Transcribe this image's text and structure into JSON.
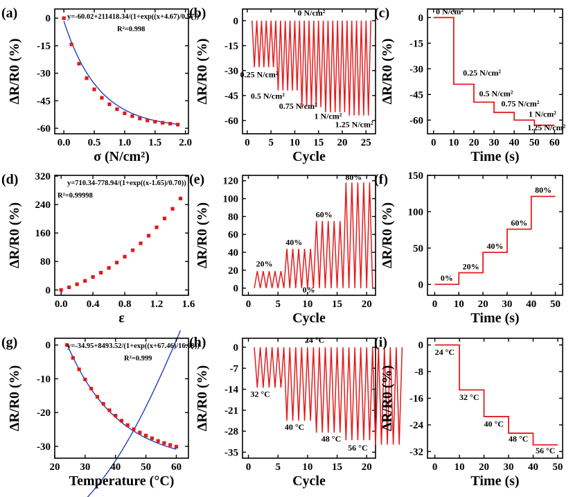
{
  "colors": {
    "data": "#e31a1c",
    "fit": "#1f3fbf",
    "axis": "#000000"
  },
  "chart_data": [
    {
      "panel": "a",
      "type": "scatter",
      "panel_label": "(a)",
      "xlabel": "σ (N/cm²)",
      "ylabel": "ΔR/R0 (%)",
      "xlim": [
        -0.15,
        2.05
      ],
      "ylim": [
        -63,
        5
      ],
      "xticks": [
        0.0,
        0.5,
        1.0,
        1.5,
        2.0
      ],
      "xtick_labels": [
        "0.0",
        "0.5",
        "1.0",
        "1.5",
        "2.0"
      ],
      "yticks": [
        0,
        -15,
        -30,
        -45,
        -60
      ],
      "ytick_labels": [
        "0",
        "-15",
        "-30",
        "-45",
        "-60"
      ],
      "equation": "y=-60.02+211418.34/(1+exp((x+4.67)/0.57))",
      "r2": "R²=0.998",
      "fit": {
        "kind": "boltzmann",
        "A1": 211418.34,
        "A2": -60.02,
        "x0": -4.67,
        "dx": 0.57
      },
      "points_x": [
        0.0,
        0.125,
        0.25,
        0.375,
        0.5,
        0.625,
        0.75,
        0.875,
        1.0,
        1.125,
        1.25,
        1.375,
        1.5,
        1.625,
        1.75,
        1.875
      ],
      "points_y": [
        0,
        -14.3,
        -24.8,
        -32.7,
        -38.8,
        -43.4,
        -46.9,
        -49.6,
        -51.8,
        -53.4,
        -54.7,
        -55.7,
        -56.4,
        -57.0,
        -57.5,
        -58.0
      ]
    },
    {
      "panel": "b",
      "type": "line",
      "panel_label": "(b)",
      "xlabel": "Cycle",
      "ylabel": "ΔR/R0 (%)",
      "xlim": [
        -1,
        27
      ],
      "ylim": [
        -68,
        7
      ],
      "xticks": [
        0,
        5,
        10,
        15,
        20,
        25
      ],
      "xtick_labels": [
        "0",
        "5",
        "10",
        "15",
        "20",
        "25"
      ],
      "yticks": [
        0,
        -15,
        -30,
        -45,
        -60
      ],
      "ytick_labels": [
        "0",
        "-15",
        "-30",
        "-45",
        "-60"
      ],
      "cycles_per_level": 5,
      "levels": [
        -28,
        -42,
        -52,
        -55,
        -57
      ],
      "annotations": [
        {
          "text": "0 N/cm²",
          "x": 13.5,
          "y": 3
        },
        {
          "text": "0.25 N/cm²",
          "x": 2.5,
          "y": -34
        },
        {
          "text": "0.5 N/cm²",
          "x": 4.3,
          "y": -47
        },
        {
          "text": "0.75 N/cm²",
          "x": 10.7,
          "y": -53
        },
        {
          "text": "1 N/cm²",
          "x": 17.0,
          "y": -59
        },
        {
          "text": "1.25 N/cm²",
          "x": 22.5,
          "y": -64
        }
      ]
    },
    {
      "panel": "c",
      "type": "line",
      "panel_label": "(c)",
      "xlabel": "Time (s)",
      "ylabel": "ΔR/R0 (%)",
      "xlim": [
        -3,
        64
      ],
      "ylim": [
        -68,
        5
      ],
      "xticks": [
        0,
        10,
        20,
        30,
        40,
        50,
        60
      ],
      "xtick_labels": [
        "0",
        "10",
        "20",
        "30",
        "40",
        "50",
        "60"
      ],
      "yticks": [
        0,
        -15,
        -30,
        -45,
        -60
      ],
      "ytick_labels": [
        "0",
        "-15",
        "-30",
        "-45",
        "-60"
      ],
      "x": [
        0,
        10,
        10,
        20,
        20,
        30,
        30,
        40,
        40,
        50,
        50,
        60
      ],
      "y": [
        0,
        0,
        -39,
        -39,
        -49.5,
        -49.5,
        -55.5,
        -55.5,
        -60,
        -60,
        -63,
        -63
      ],
      "annotations": [
        {
          "text": "0 N/cm²",
          "x": 8,
          "y": 2
        },
        {
          "text": "0.25 N/cm²",
          "x": 24,
          "y": -34
        },
        {
          "text": "0.5 N/cm²",
          "x": 31,
          "y": -46
        },
        {
          "text": "0.75 N/cm²",
          "x": 43,
          "y": -52
        },
        {
          "text": "1 N/cm²",
          "x": 54,
          "y": -58
        },
        {
          "text": "1.25 N/cm²",
          "x": 56,
          "y": -66
        }
      ]
    },
    {
      "panel": "d",
      "type": "scatter",
      "panel_label": "(d)",
      "xlabel": "ε",
      "ylabel": "ΔR/R0 (%)",
      "xlim": [
        -0.08,
        1.6
      ],
      "ylim": [
        -15,
        322
      ],
      "xticks": [
        0.0,
        0.4,
        0.8,
        1.2,
        1.6
      ],
      "xtick_labels": [
        "0.0",
        "0.4",
        "0.8",
        "1.2",
        "1.6"
      ],
      "yticks": [
        0,
        80,
        160,
        240,
        320
      ],
      "ytick_labels": [
        "0",
        "80",
        "160",
        "240",
        "320"
      ],
      "equation": "y=710.34-778.94/(1+exp((x-1.65)/0.70))",
      "r2": "R²=0.99998",
      "fit": {
        "kind": "boltzmann",
        "A1": -778.94,
        "A2": 710.34,
        "x0": 1.65,
        "dx": 0.7
      },
      "points_x": [
        0.0,
        0.1,
        0.2,
        0.3,
        0.4,
        0.5,
        0.6,
        0.7,
        0.8,
        0.9,
        1.0,
        1.1,
        1.2,
        1.3,
        1.4,
        1.5
      ],
      "points_y": [
        0,
        7.5,
        16,
        25.5,
        36.5,
        48.5,
        62,
        77,
        93.5,
        111.5,
        131,
        152.5,
        176,
        201,
        228,
        257
      ]
    },
    {
      "panel": "e",
      "type": "line",
      "panel_label": "(e)",
      "xlabel": "Cycle",
      "ylabel": "ΔR/R0 (%)",
      "xlim": [
        -1,
        21.5
      ],
      "ylim": [
        -8,
        126
      ],
      "xticks": [
        0,
        5,
        10,
        15,
        20
      ],
      "xtick_labels": [
        "0",
        "5",
        "10",
        "15",
        "20"
      ],
      "yticks": [
        0,
        20,
        40,
        60,
        80,
        100,
        120
      ],
      "ytick_labels": [
        "0",
        "20",
        "40",
        "60",
        "80",
        "100",
        "120"
      ],
      "cycles_per_level": 5,
      "levels": [
        19,
        44,
        75,
        118
      ],
      "annotations": [
        {
          "text": "20%",
          "x": 2.7,
          "y": 24
        },
        {
          "text": "40%",
          "x": 7.7,
          "y": 48
        },
        {
          "text": "60%",
          "x": 12.8,
          "y": 79
        },
        {
          "text": "80%",
          "x": 17.8,
          "y": 121
        },
        {
          "text": "0%",
          "x": 10.2,
          "y": -5
        }
      ]
    },
    {
      "panel": "f",
      "type": "line",
      "panel_label": "(f)",
      "xlabel": "Time (s)",
      "ylabel": "ΔR/R0 (%)",
      "xlim": [
        -3,
        53
      ],
      "ylim": [
        -15,
        150
      ],
      "xticks": [
        0,
        10,
        20,
        30,
        40,
        50
      ],
      "xtick_labels": [
        "0",
        "10",
        "20",
        "30",
        "40",
        "50"
      ],
      "yticks": [
        0,
        50,
        100,
        150
      ],
      "ytick_labels": [
        "0",
        "50",
        "100",
        "150"
      ],
      "x": [
        0,
        10,
        10,
        20,
        20,
        30,
        30,
        40,
        40,
        50
      ],
      "y": [
        0,
        0,
        16,
        16,
        44,
        44,
        76,
        76,
        121,
        121
      ],
      "annotations": [
        {
          "text": "0%",
          "x": 5,
          "y": 5
        },
        {
          "text": "20%",
          "x": 15,
          "y": 21
        },
        {
          "text": "40%",
          "x": 25,
          "y": 49
        },
        {
          "text": "60%",
          "x": 35,
          "y": 81
        },
        {
          "text": "80%",
          "x": 45,
          "y": 126
        }
      ]
    },
    {
      "panel": "g",
      "type": "scatter",
      "panel_label": "(g)",
      "xlabel": "Temperature (°C)",
      "ylabel": "ΔR/R0 (%)",
      "xlim": [
        20,
        64
      ],
      "ylim": [
        -33.5,
        2
      ],
      "xticks": [
        20,
        30,
        40,
        50,
        60
      ],
      "xtick_labels": [
        "20",
        "30",
        "40",
        "50",
        "60"
      ],
      "yticks": [
        0,
        -10,
        -20,
        -30
      ],
      "ytick_labels": [
        "0",
        "-10",
        "-20",
        "-30"
      ],
      "equation": "y=-34.95+8493.52/(1+exp((x+67.46)/16.68))",
      "r2": "R²=0.999",
      "fit": {
        "kind": "boltzmann",
        "A1": 8493.52,
        "A2": -34.95,
        "x0": -67.46,
        "dx": 16.68
      },
      "points_x": [
        24,
        26,
        28,
        30,
        32,
        34,
        36,
        38,
        40,
        42,
        44,
        46,
        48,
        50,
        52,
        54,
        56,
        58,
        60
      ],
      "points_y": [
        0,
        -3.8,
        -7.2,
        -10.2,
        -12.9,
        -15.3,
        -17.4,
        -19.3,
        -20.9,
        -22.4,
        -23.7,
        -24.9,
        -25.9,
        -26.8,
        -27.6,
        -28.4,
        -29.0,
        -29.6,
        -30.1
      ]
    },
    {
      "panel": "h",
      "type": "line",
      "panel_label": "(h)",
      "xlabel": "Cycle",
      "ylabel": "ΔR/R0 (%)",
      "xlim": [
        -1,
        21.5
      ],
      "ylim": [
        -37,
        3
      ],
      "xticks": [
        0,
        5,
        10,
        15,
        20
      ],
      "xtick_labels": [
        "0",
        "5",
        "10",
        "15",
        "20"
      ],
      "yticks": [
        0,
        -7,
        -14,
        -21,
        -28,
        -35
      ],
      "ytick_labels": [
        "0",
        "-7",
        "-14",
        "-21",
        "-28",
        "-35"
      ],
      "cycles_per_level": 5,
      "levels": [
        -13.5,
        -24.5,
        -28.5,
        -31,
        -32.5
      ],
      "annotations": [
        {
          "text": "24 °C",
          "x": 11.2,
          "y": 1.5
        },
        {
          "text": "32 °C",
          "x": 2.0,
          "y": -16.5
        },
        {
          "text": "40 °C",
          "x": 7.8,
          "y": -27.5
        },
        {
          "text": "48 °C",
          "x": 14.0,
          "y": -31.5
        },
        {
          "text": "56 °C",
          "x": 18.5,
          "y": -34.5
        }
      ]
    },
    {
      "panel": "i",
      "type": "line",
      "panel_label": "(i)",
      "xlabel": "Time (s)",
      "ylabel": "ΔR/R0 (%)",
      "xlim": [
        -3,
        52
      ],
      "ylim": [
        -34,
        2
      ],
      "xticks": [
        0,
        10,
        20,
        30,
        40,
        50
      ],
      "xtick_labels": [
        "0",
        "10",
        "20",
        "30",
        "40",
        "50"
      ],
      "yticks": [
        0,
        -8,
        -16,
        -24,
        -32
      ],
      "ytick_labels": [
        "0",
        "-8",
        "-16",
        "-24",
        "-32"
      ],
      "x": [
        0,
        10,
        10,
        20,
        20,
        30,
        30,
        40,
        40,
        50
      ],
      "y": [
        0,
        0,
        -13.5,
        -13.5,
        -21.5,
        -21.5,
        -26.5,
        -26.5,
        -30,
        -30
      ],
      "annotations": [
        {
          "text": "24 °C",
          "x": 4,
          "y": -3
        },
        {
          "text": "32 °C",
          "x": 14,
          "y": -16.5
        },
        {
          "text": "40 °C",
          "x": 24,
          "y": -24.5
        },
        {
          "text": "48 °C",
          "x": 34,
          "y": -29
        },
        {
          "text": "56 °C",
          "x": 45,
          "y": -32.5
        }
      ]
    }
  ]
}
